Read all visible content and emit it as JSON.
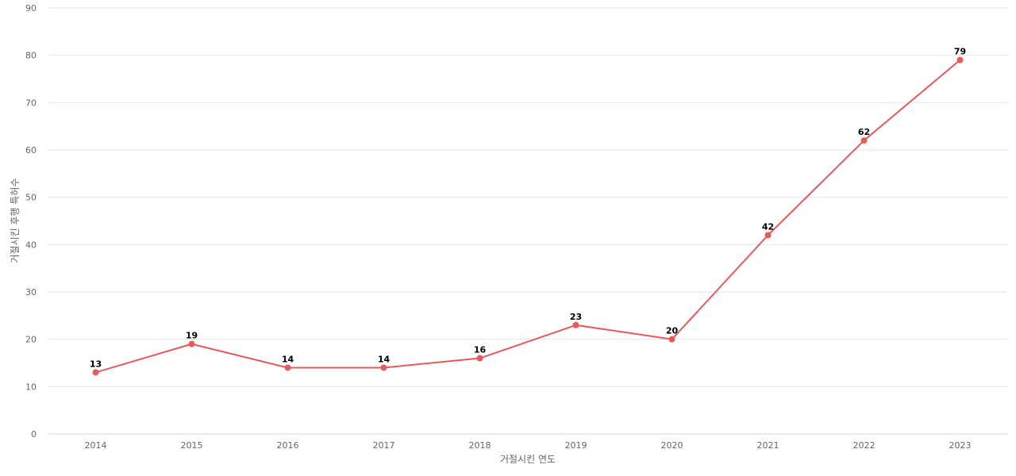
{
  "chart_data": {
    "type": "line",
    "title": "",
    "xlabel": "거절시킨 연도",
    "ylabel": "거절시킨 후행 특허수",
    "categories": [
      "2014",
      "2015",
      "2016",
      "2017",
      "2018",
      "2019",
      "2020",
      "2021",
      "2022",
      "2023"
    ],
    "series": [
      {
        "values": [
          13,
          19,
          14,
          14,
          16,
          23,
          20,
          42,
          62,
          79
        ],
        "color": "#e85a5a"
      }
    ],
    "ylim": [
      0,
      90
    ],
    "yticks": [
      0,
      10,
      20,
      30,
      40,
      50,
      60,
      70,
      80,
      90
    ],
    "grid": true,
    "data_labels": true,
    "legend": "none"
  }
}
